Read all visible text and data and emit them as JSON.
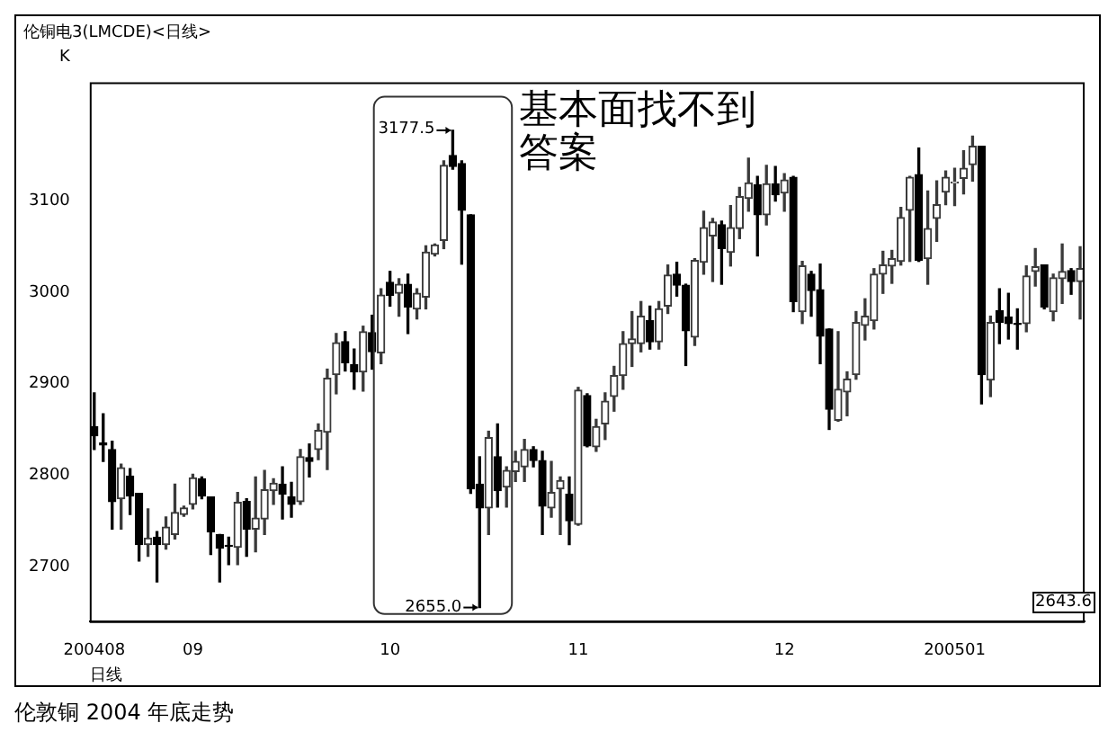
{
  "chart_data": {
    "type": "candlestick",
    "title": "伦铜电3(LMCDE)<日线>",
    "xlabel": "日线",
    "categories": [
      "200408",
      null,
      null,
      null,
      null,
      null,
      null,
      null,
      null,
      null,
      null,
      "09",
      null,
      null,
      null,
      null,
      null,
      null,
      null,
      null,
      null,
      null,
      null,
      null,
      null,
      null,
      null,
      null,
      null,
      null,
      null,
      null,
      null,
      "10",
      null,
      null,
      null,
      null,
      null,
      null,
      null,
      null,
      null,
      null,
      null,
      null,
      null,
      null,
      null,
      null,
      null,
      null,
      null,
      null,
      "11",
      null,
      null,
      null,
      null,
      null,
      null,
      null,
      null,
      null,
      null,
      null,
      null,
      null,
      null,
      null,
      null,
      null,
      null,
      null,
      null,
      null,
      null,
      "12",
      null,
      null,
      null,
      null,
      null,
      null,
      null,
      null,
      null,
      null,
      null,
      null,
      null,
      null,
      null,
      null,
      null,
      null,
      "200501",
      null,
      null,
      null,
      null,
      null,
      null,
      null,
      null,
      null,
      null,
      null,
      null,
      null,
      null
    ],
    "ohlc": [
      [
        2853,
        2890,
        2828,
        2843
      ],
      [
        2835,
        2867,
        2815,
        2833
      ],
      [
        2828,
        2837,
        2741,
        2771
      ],
      [
        2774,
        2812,
        2741,
        2808
      ],
      [
        2799,
        2807,
        2757,
        2777
      ],
      [
        2780,
        2780,
        2706,
        2724
      ],
      [
        2724,
        2763,
        2711,
        2731
      ],
      [
        2732,
        2738,
        2683,
        2724
      ],
      [
        2724,
        2754,
        2719,
        2743
      ],
      [
        2735,
        2790,
        2730,
        2759
      ],
      [
        2757,
        2766,
        2755,
        2764
      ],
      [
        2768,
        2801,
        2763,
        2797
      ],
      [
        2796,
        2798,
        2774,
        2777
      ],
      [
        2776,
        2776,
        2713,
        2738
      ],
      [
        2735,
        2735,
        2683,
        2720
      ],
      [
        2723,
        2732,
        2702,
        2722
      ],
      [
        2721,
        2781,
        2702,
        2770
      ],
      [
        2771,
        2774,
        2711,
        2741
      ],
      [
        2741,
        2798,
        2716,
        2753
      ],
      [
        2752,
        2805,
        2735,
        2784
      ],
      [
        2783,
        2796,
        2768,
        2791
      ],
      [
        2790,
        2809,
        2752,
        2779
      ],
      [
        2776,
        2792,
        2754,
        2768
      ],
      [
        2771,
        2828,
        2768,
        2820
      ],
      [
        2819,
        2834,
        2798,
        2815
      ],
      [
        2828,
        2856,
        2817,
        2849
      ],
      [
        2847,
        2916,
        2806,
        2906
      ],
      [
        2910,
        2955,
        2889,
        2945
      ],
      [
        2946,
        2957,
        2914,
        2923
      ],
      [
        2921,
        2938,
        2894,
        2913
      ],
      [
        2913,
        2963,
        2892,
        2957
      ],
      [
        2956,
        2975,
        2916,
        2935
      ],
      [
        2934,
        3004,
        2922,
        2997
      ],
      [
        3011,
        3023,
        2985,
        2997
      ],
      [
        2999,
        3015,
        2974,
        3009
      ],
      [
        3009,
        3020,
        2955,
        2984
      ],
      [
        2982,
        3004,
        2971,
        2999
      ],
      [
        2995,
        3051,
        2982,
        3044
      ],
      [
        3042,
        3053,
        3040,
        3052
      ],
      [
        3057,
        3144,
        3048,
        3139
      ],
      [
        3150,
        3177.5,
        3135,
        3138
      ],
      [
        3141,
        3144,
        3031,
        3090
      ],
      [
        3085,
        3085,
        2780,
        2785
      ],
      [
        2790,
        2820,
        2655,
        2764
      ],
      [
        2764,
        2848,
        2735,
        2841
      ],
      [
        2820,
        2856,
        2765,
        2783
      ],
      [
        2787,
        2809,
        2765,
        2805
      ],
      [
        2804,
        2826,
        2793,
        2815
      ],
      [
        2809,
        2839,
        2793,
        2828
      ],
      [
        2828,
        2831,
        2809,
        2816
      ],
      [
        2816,
        2826,
        2735,
        2766
      ],
      [
        2764,
        2815,
        2754,
        2781
      ],
      [
        2785,
        2798,
        2735,
        2794
      ],
      [
        2779,
        2798,
        2724,
        2750
      ],
      [
        2746,
        2896,
        2745,
        2893
      ],
      [
        2887,
        2889,
        2831,
        2832
      ],
      [
        2831,
        2861,
        2826,
        2853
      ],
      [
        2856,
        2890,
        2839,
        2881
      ],
      [
        2886,
        2919,
        2870,
        2909
      ],
      [
        2909,
        2957,
        2894,
        2944
      ],
      [
        2944,
        2979,
        2919,
        2949
      ],
      [
        2944,
        2990,
        2935,
        2974
      ],
      [
        2969,
        2985,
        2938,
        2946
      ],
      [
        2946,
        2990,
        2938,
        2982
      ],
      [
        2985,
        3030,
        2977,
        3019
      ],
      [
        3020,
        3033,
        2996,
        3008
      ],
      [
        3008,
        3009,
        2920,
        2958
      ],
      [
        2951,
        3037,
        2942,
        3035
      ],
      [
        3033,
        3089,
        3020,
        3071
      ],
      [
        3062,
        3081,
        3012,
        3077
      ],
      [
        3074,
        3078,
        3009,
        3048
      ],
      [
        3044,
        3095,
        3029,
        3071
      ],
      [
        3070,
        3115,
        3059,
        3105
      ],
      [
        3103,
        3147,
        3089,
        3120
      ],
      [
        3118,
        3127,
        3040,
        3085
      ],
      [
        3085,
        3139,
        3074,
        3119
      ],
      [
        3119,
        3138,
        3100,
        3107
      ],
      [
        3109,
        3130,
        3089,
        3123
      ],
      [
        3126,
        3127,
        2979,
        2990
      ],
      [
        2979,
        3034,
        2966,
        3029
      ],
      [
        3020,
        3023,
        2974,
        3002
      ],
      [
        3003,
        3031,
        2922,
        2952
      ],
      [
        2960,
        2960,
        2850,
        2872
      ],
      [
        2860,
        2957,
        2859,
        2894
      ],
      [
        2891,
        2913,
        2865,
        2905
      ],
      [
        2910,
        2979,
        2905,
        2967
      ],
      [
        2964,
        2993,
        2948,
        2974
      ],
      [
        2969,
        3026,
        2960,
        3020
      ],
      [
        3020,
        3045,
        2999,
        3030
      ],
      [
        3029,
        3046,
        3010,
        3037
      ],
      [
        3034,
        3093,
        3030,
        3082
      ],
      [
        3090,
        3127,
        3034,
        3126
      ],
      [
        3129,
        3158,
        3034,
        3035
      ],
      [
        3037,
        3111,
        3009,
        3070
      ],
      [
        3081,
        3122,
        3056,
        3096
      ],
      [
        3110,
        3133,
        3096,
        3126
      ],
      [
        3120,
        3136,
        3095,
        3121
      ],
      [
        3125,
        3155,
        3108,
        3136
      ],
      [
        3140,
        3171,
        3122,
        3160
      ],
      [
        3160,
        3160,
        2878,
        2910
      ],
      [
        2904,
        2974,
        2886,
        2967
      ],
      [
        2980,
        3004,
        2944,
        2967
      ],
      [
        2973,
        2999,
        2949,
        2966
      ],
      [
        2966,
        2982,
        2938,
        2965
      ],
      [
        2966,
        3029,
        2957,
        3018
      ],
      [
        3023,
        3048,
        3007,
        3028
      ],
      [
        3030,
        3030,
        2982,
        2984
      ],
      [
        2979,
        3020,
        2969,
        3016
      ],
      [
        3015,
        3053,
        2988,
        3023
      ],
      [
        3024,
        3026,
        2998,
        3012
      ],
      [
        3012,
        3050,
        2971,
        3026
      ]
    ],
    "colors": [
      "#000000",
      "#000000",
      "#000000",
      "#3a3a3a",
      "#000000",
      "#000000",
      "#3a3a3a",
      "#000000",
      "#3a3a3a",
      "#3a3a3a",
      "#3a3a3a",
      "#3a3a3a",
      "#000000",
      "#000000",
      "#000000",
      "#000000",
      "#3a3a3a",
      "#000000",
      "#3a3a3a",
      "#3a3a3a",
      "#3a3a3a",
      "#000000",
      "#000000",
      "#3a3a3a",
      "#000000",
      "#3a3a3a",
      "#3a3a3a",
      "#3a3a3a",
      "#000000",
      "#000000",
      "#3a3a3a",
      "#000000",
      "#3a3a3a",
      "#000000",
      "#3a3a3a",
      "#000000",
      "#3a3a3a",
      "#3a3a3a",
      "#3a3a3a",
      "#3a3a3a",
      "#000000",
      "#000000",
      "#000000",
      "#000000",
      "#3a3a3a",
      "#000000",
      "#3a3a3a",
      "#3a3a3a",
      "#3a3a3a",
      "#000000",
      "#000000",
      "#3a3a3a",
      "#3a3a3a",
      "#000000",
      "#3a3a3a",
      "#000000",
      "#3a3a3a",
      "#3a3a3a",
      "#3a3a3a",
      "#3a3a3a",
      "#3a3a3a",
      "#3a3a3a",
      "#000000",
      "#3a3a3a",
      "#3a3a3a",
      "#000000",
      "#000000",
      "#3a3a3a",
      "#3a3a3a",
      "#3a3a3a",
      "#000000",
      "#3a3a3a",
      "#3a3a3a",
      "#3a3a3a",
      "#000000",
      "#3a3a3a",
      "#000000",
      "#3a3a3a",
      "#000000",
      "#3a3a3a",
      "#000000",
      "#000000",
      "#000000",
      "#3a3a3a",
      "#3a3a3a",
      "#3a3a3a",
      "#3a3a3a",
      "#3a3a3a",
      "#3a3a3a",
      "#3a3a3a",
      "#3a3a3a",
      "#3a3a3a",
      "#000000",
      "#3a3a3a",
      "#3a3a3a",
      "#3a3a3a",
      "#3a3a3a",
      "#3a3a3a",
      "#3a3a3a",
      "#000000",
      "#3a3a3a",
      "#000000",
      "#000000",
      "#000000",
      "#3a3a3a",
      "#3a3a3a",
      "#000000",
      "#3a3a3a",
      "#3a3a3a",
      "#000000",
      "#3a3a3a"
    ],
    "ylim": [
      2640,
      3230
    ],
    "yticks": [
      2700,
      2800,
      2900,
      3000,
      3100
    ],
    "annotations": [
      "K",
      "基本面找不到答案",
      "3177.5",
      "2655.0",
      "2643.6",
      "伦敦铜 2004 年底走势"
    ]
  }
}
